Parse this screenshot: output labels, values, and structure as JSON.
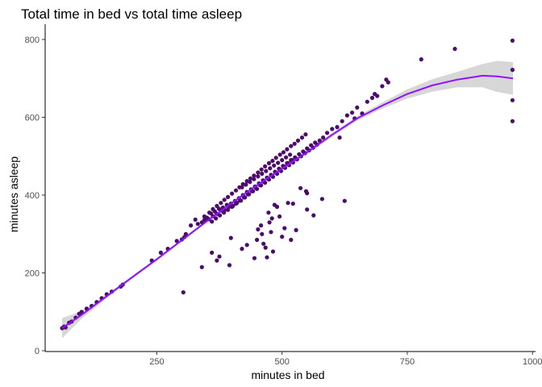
{
  "chart_data": {
    "type": "scatter",
    "title": "Total time in bed vs total time asleep",
    "xlabel": "minutes in bed",
    "ylabel": "minutes asleep",
    "xlim": [
      61,
      961
    ],
    "ylim": [
      0,
      800
    ],
    "x_ticks": [
      250,
      500,
      750,
      1000
    ],
    "x_tick_labels": [
      "250",
      "500",
      "750",
      "1000"
    ],
    "y_ticks": [
      0,
      200,
      400,
      600,
      800
    ],
    "y_tick_labels": [
      "0",
      "200",
      "400",
      "600",
      "800"
    ],
    "grid": false,
    "legend": "none",
    "colors": {
      "points": "#4B0C6B",
      "smooth_line": "#9013FE",
      "confidence_band": "#D3D3D3",
      "axis": "#000000",
      "tick_text": "#4D4D4D"
    },
    "points": [
      [
        61,
        58
      ],
      [
        65,
        62
      ],
      [
        68,
        60
      ],
      [
        75,
        72
      ],
      [
        80,
        75
      ],
      [
        88,
        85
      ],
      [
        95,
        95
      ],
      [
        100,
        100
      ],
      [
        110,
        108
      ],
      [
        120,
        115
      ],
      [
        130,
        125
      ],
      [
        140,
        135
      ],
      [
        150,
        145
      ],
      [
        160,
        152
      ],
      [
        178,
        165
      ],
      [
        182,
        170
      ],
      [
        240,
        232
      ],
      [
        258,
        252
      ],
      [
        272,
        262
      ],
      [
        290,
        282
      ],
      [
        300,
        286
      ],
      [
        305,
        292
      ],
      [
        308,
        300
      ],
      [
        318,
        322
      ],
      [
        327,
        337
      ],
      [
        332,
        326
      ],
      [
        340,
        330
      ],
      [
        345,
        336
      ],
      [
        350,
        342
      ],
      [
        354,
        338
      ],
      [
        358,
        353
      ],
      [
        362,
        346
      ],
      [
        366,
        358
      ],
      [
        370,
        352
      ],
      [
        374,
        365
      ],
      [
        378,
        360
      ],
      [
        382,
        368
      ],
      [
        386,
        362
      ],
      [
        390,
        375
      ],
      [
        394,
        370
      ],
      [
        398,
        378
      ],
      [
        402,
        372
      ],
      [
        406,
        385
      ],
      [
        410,
        380
      ],
      [
        414,
        392
      ],
      [
        418,
        386
      ],
      [
        422,
        400
      ],
      [
        426,
        394
      ],
      [
        430,
        408
      ],
      [
        434,
        402
      ],
      [
        438,
        415
      ],
      [
        442,
        410
      ],
      [
        446,
        422
      ],
      [
        450,
        416
      ],
      [
        454,
        430
      ],
      [
        458,
        425
      ],
      [
        462,
        438
      ],
      [
        466,
        432
      ],
      [
        470,
        445
      ],
      [
        474,
        440
      ],
      [
        478,
        452
      ],
      [
        482,
        447
      ],
      [
        486,
        460
      ],
      [
        490,
        455
      ],
      [
        494,
        468
      ],
      [
        498,
        462
      ],
      [
        502,
        475
      ],
      [
        506,
        470
      ],
      [
        510,
        482
      ],
      [
        514,
        477
      ],
      [
        518,
        490
      ],
      [
        522,
        484
      ],
      [
        526,
        497
      ],
      [
        530,
        492
      ],
      [
        534,
        505
      ],
      [
        538,
        500
      ],
      [
        542,
        512
      ],
      [
        546,
        508
      ],
      [
        550,
        520
      ],
      [
        554,
        515
      ],
      [
        558,
        528
      ],
      [
        562,
        522
      ],
      [
        566,
        535
      ],
      [
        570,
        530
      ],
      [
        575,
        540
      ],
      [
        582,
        548
      ],
      [
        355,
        355
      ],
      [
        362,
        364
      ],
      [
        370,
        372
      ],
      [
        378,
        380
      ],
      [
        385,
        388
      ],
      [
        392,
        395
      ],
      [
        400,
        404
      ],
      [
        408,
        412
      ],
      [
        415,
        420
      ],
      [
        422,
        428
      ],
      [
        430,
        436
      ],
      [
        437,
        443
      ],
      [
        444,
        450
      ],
      [
        452,
        458
      ],
      [
        459,
        466
      ],
      [
        466,
        474
      ],
      [
        474,
        482
      ],
      [
        481,
        488
      ],
      [
        488,
        496
      ],
      [
        496,
        504
      ],
      [
        503,
        510
      ],
      [
        510,
        518
      ],
      [
        518,
        526
      ],
      [
        525,
        532
      ],
      [
        532,
        540
      ],
      [
        540,
        548
      ],
      [
        547,
        556
      ],
      [
        345,
        345
      ],
      [
        352,
        338
      ],
      [
        360,
        332
      ],
      [
        368,
        340
      ],
      [
        376,
        348
      ],
      [
        384,
        355
      ],
      [
        392,
        362
      ],
      [
        400,
        370
      ],
      [
        408,
        378
      ],
      [
        416,
        386
      ],
      [
        424,
        394
      ],
      [
        432,
        402
      ],
      [
        440,
        410
      ],
      [
        448,
        418
      ],
      [
        456,
        426
      ],
      [
        464,
        434
      ],
      [
        472,
        442
      ],
      [
        480,
        450
      ],
      [
        488,
        458
      ],
      [
        496,
        466
      ],
      [
        504,
        474
      ],
      [
        512,
        482
      ],
      [
        520,
        490
      ],
      [
        420,
        420
      ],
      [
        428,
        427
      ],
      [
        436,
        434
      ],
      [
        444,
        441
      ],
      [
        452,
        448
      ],
      [
        460,
        455
      ],
      [
        468,
        462
      ],
      [
        476,
        469
      ],
      [
        484,
        476
      ],
      [
        492,
        483
      ],
      [
        500,
        490
      ],
      [
        508,
        497
      ],
      [
        516,
        504
      ],
      [
        590,
        560
      ],
      [
        600,
        570
      ],
      [
        610,
        575
      ],
      [
        615,
        548
      ],
      [
        620,
        590
      ],
      [
        630,
        605
      ],
      [
        640,
        612
      ],
      [
        645,
        597
      ],
      [
        650,
        625
      ],
      [
        660,
        610
      ],
      [
        670,
        640
      ],
      [
        680,
        650
      ],
      [
        685,
        660
      ],
      [
        690,
        655
      ],
      [
        700,
        680
      ],
      [
        708,
        697
      ],
      [
        712,
        690
      ],
      [
        778,
        749
      ],
      [
        845,
        776
      ],
      [
        960,
        797
      ],
      [
        960,
        722
      ],
      [
        960,
        644
      ],
      [
        960,
        590
      ],
      [
        303,
        150
      ],
      [
        340,
        215
      ],
      [
        360,
        252
      ],
      [
        370,
        232
      ],
      [
        375,
        242
      ],
      [
        395,
        220
      ],
      [
        398,
        290
      ],
      [
        420,
        262
      ],
      [
        430,
        272
      ],
      [
        445,
        238
      ],
      [
        450,
        285
      ],
      [
        452,
        312
      ],
      [
        458,
        322
      ],
      [
        460,
        300
      ],
      [
        463,
        275
      ],
      [
        467,
        265
      ],
      [
        470,
        240
      ],
      [
        473,
        355
      ],
      [
        475,
        330
      ],
      [
        478,
        305
      ],
      [
        480,
        340
      ],
      [
        482,
        255
      ],
      [
        485,
        375
      ],
      [
        490,
        370
      ],
      [
        495,
        345
      ],
      [
        500,
        293
      ],
      [
        505,
        315
      ],
      [
        512,
        380
      ],
      [
        518,
        285
      ],
      [
        522,
        378
      ],
      [
        528,
        310
      ],
      [
        550,
        363
      ],
      [
        563,
        348
      ],
      [
        580,
        390
      ],
      [
        625,
        385
      ],
      [
        550,
        405
      ],
      [
        548,
        410
      ],
      [
        537,
        418
      ]
    ],
    "smooth_line": {
      "x": [
        61,
        100,
        150,
        200,
        250,
        300,
        350,
        400,
        450,
        500,
        550,
        600,
        650,
        700,
        750,
        800,
        850,
        900,
        930,
        961
      ],
      "y": [
        58,
        92,
        140,
        188,
        235,
        284,
        333,
        380,
        425,
        468,
        510,
        555,
        597,
        630,
        660,
        682,
        697,
        707,
        705,
        700
      ]
    },
    "confidence_band": {
      "x": [
        61,
        100,
        150,
        200,
        250,
        300,
        350,
        400,
        450,
        500,
        550,
        600,
        650,
        700,
        750,
        800,
        850,
        900,
        930,
        961
      ],
      "upper": [
        84,
        102,
        145,
        192,
        239,
        288,
        336,
        383,
        428,
        471,
        514,
        560,
        603,
        638,
        672,
        698,
        717,
        737,
        745,
        742
      ],
      "lower": [
        32,
        82,
        135,
        184,
        231,
        280,
        330,
        377,
        422,
        465,
        506,
        550,
        591,
        622,
        648,
        666,
        677,
        677,
        665,
        658
      ]
    }
  }
}
